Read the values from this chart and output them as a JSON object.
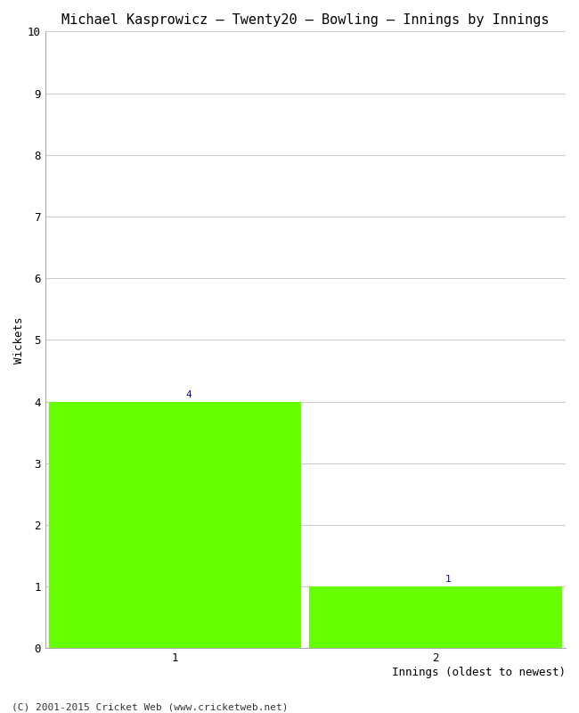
{
  "title": "Michael Kasprowicz – Twenty20 – Bowling – Innings by Innings",
  "xlabel": "Innings (oldest to newest)",
  "ylabel": "Wickets",
  "categories": [
    1,
    2
  ],
  "values": [
    4,
    1
  ],
  "bar_color": "#66ff00",
  "ylim": [
    0,
    10
  ],
  "yticks": [
    0,
    1,
    2,
    3,
    4,
    5,
    6,
    7,
    8,
    9,
    10
  ],
  "xticks": [
    1,
    2
  ],
  "annotation_labels": [
    "4",
    "1"
  ],
  "footer": "(C) 2001-2015 Cricket Web (www.cricketweb.net)",
  "background_color": "#ffffff",
  "title_fontsize": 11,
  "axis_fontsize": 9,
  "tick_fontsize": 9,
  "annotation_fontsize": 8,
  "bar_width": 0.97
}
